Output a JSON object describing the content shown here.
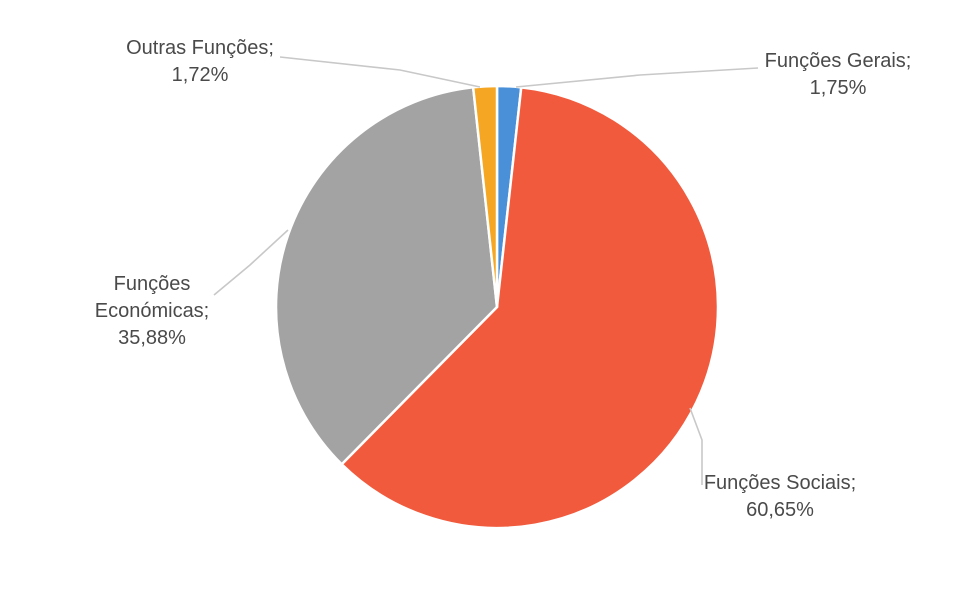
{
  "chart_data": {
    "type": "pie",
    "title": "",
    "slices": [
      {
        "name": "Funções Gerais",
        "value": 1.75,
        "label_lines": [
          "Funções Gerais;",
          "1,75%"
        ],
        "color": "#4a90d9"
      },
      {
        "name": "Funções Sociais",
        "value": 60.65,
        "label_lines": [
          "Funções Sociais;",
          "60,65%"
        ],
        "color": "#f15a3c"
      },
      {
        "name": "Funções Económicas",
        "value": 35.88,
        "label_lines": [
          "Funções",
          "Económicas;",
          "35,88%"
        ],
        "color": "#a3a3a3"
      },
      {
        "name": "Outras Funções",
        "value": 1.72,
        "label_lines": [
          "Outras Funções;",
          "1,72%"
        ],
        "color": "#f5a623"
      }
    ],
    "start_angle_deg": 0,
    "direction": "clockwise",
    "legend": "none",
    "data_labels": "outside-with-leader-lines"
  }
}
